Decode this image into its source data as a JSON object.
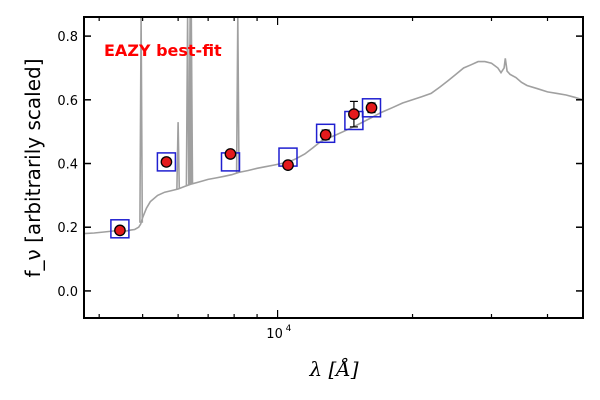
{
  "chart_data": {
    "type": "scatter",
    "title": "",
    "annotation": {
      "text": "EAZY best-fit",
      "color": "#ff0000"
    },
    "xlabel": "λ [Å]",
    "ylabel": "f_ν [arbitrarily scaled]",
    "x_scale": "log",
    "xlim": [
      3700,
      48000
    ],
    "ylim": [
      -0.085,
      0.86
    ],
    "y_ticks": [
      0.0,
      0.2,
      0.4,
      0.6,
      0.8
    ],
    "y_tick_labels": [
      "0.0",
      "0.2",
      "0.4",
      "0.6",
      "0.8"
    ],
    "x_tick_major_labels": [
      {
        "value": 10000,
        "label": "10",
        "exp": "4"
      }
    ],
    "colors": {
      "template": "#a0a0a0",
      "model_box": "#1f1fd0",
      "observed": "#e41a1c",
      "errorbar": "#000000"
    },
    "series": [
      {
        "kind": "template_spectrum",
        "x": [
          3700,
          3900,
          4100,
          4300,
          4500,
          4600,
          4700,
          4800,
          4900,
          4950,
          5000,
          5100,
          5200,
          5400,
          5600,
          5800,
          6000,
          6200,
          6400,
          6600,
          6800,
          7000,
          7300,
          7600,
          7900,
          8200,
          8600,
          9000,
          9400,
          9800,
          10200,
          10600,
          11000,
          11500,
          12000,
          12500,
          13000,
          13500,
          14000,
          15000,
          16000,
          17000,
          18000,
          19000,
          20000,
          21000,
          22000,
          23000,
          24000,
          25000,
          26000,
          27000,
          28000,
          29000,
          30000,
          31000,
          31500,
          32000,
          32200,
          32500,
          33000,
          34000,
          35000,
          36000,
          38000,
          40000,
          42000,
          44000,
          46000,
          48000
        ],
        "y": [
          0.18,
          0.182,
          0.185,
          0.188,
          0.19,
          0.188,
          0.191,
          0.193,
          0.2,
          0.21,
          0.23,
          0.26,
          0.28,
          0.3,
          0.31,
          0.315,
          0.32,
          0.328,
          0.335,
          0.34,
          0.345,
          0.35,
          0.355,
          0.36,
          0.365,
          0.372,
          0.378,
          0.385,
          0.39,
          0.395,
          0.4,
          0.405,
          0.415,
          0.43,
          0.45,
          0.47,
          0.48,
          0.49,
          0.5,
          0.52,
          0.54,
          0.56,
          0.575,
          0.59,
          0.6,
          0.61,
          0.62,
          0.64,
          0.66,
          0.68,
          0.7,
          0.71,
          0.72,
          0.72,
          0.715,
          0.7,
          0.685,
          0.7,
          0.73,
          0.69,
          0.68,
          0.67,
          0.655,
          0.645,
          0.635,
          0.625,
          0.62,
          0.615,
          0.608,
          0.6
        ]
      },
      {
        "kind": "emission_lines",
        "lines": [
          {
            "x": 4960,
            "peak": 0.86
          },
          {
            "x": 6000,
            "peak": 0.53
          },
          {
            "x": 6300,
            "peak": 0.86
          },
          {
            "x": 6380,
            "peak": 0.86
          },
          {
            "x": 6420,
            "peak": 0.86
          },
          {
            "x": 8150,
            "peak": 0.86
          }
        ]
      },
      {
        "kind": "model_photometry",
        "x": [
          4450,
          5650,
          7850,
          10550,
          12800,
          14800,
          16200
        ],
        "y": [
          0.195,
          0.405,
          0.405,
          0.42,
          0.495,
          0.535,
          0.575
        ]
      },
      {
        "kind": "observed_photometry",
        "x": [
          4450,
          5650,
          7850,
          10550,
          12800,
          14800,
          16200
        ],
        "y": [
          0.19,
          0.405,
          0.43,
          0.395,
          0.49,
          0.555,
          0.575
        ],
        "yerr": [
          0.01,
          0.012,
          0.012,
          0.012,
          0.015,
          0.04,
          0.015
        ]
      }
    ]
  }
}
